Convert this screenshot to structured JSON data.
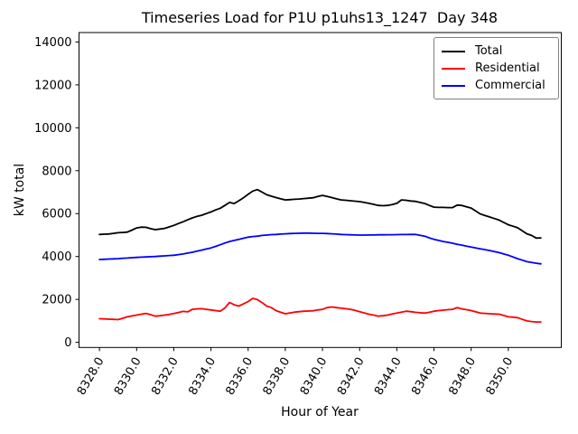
{
  "figure": {
    "background": "#ffffff"
  },
  "chart_data": {
    "type": "line",
    "title": "Timeseries Load for P1U p1uhs13_1247  Day 348",
    "xlabel": "Hour of Year",
    "ylabel": "kW total",
    "xlim": [
      8326.9,
      8352.85
    ],
    "ylim": [
      -240,
      14440
    ],
    "grid": false,
    "legend_position": "upper right",
    "ytick_values": [
      0,
      2000,
      4000,
      6000,
      8000,
      10000,
      12000,
      14000
    ],
    "ytick_labels": [
      "0",
      "2000",
      "4000",
      "6000",
      "8000",
      "10000",
      "12000",
      "14000"
    ],
    "xtick_values": [
      8328,
      8330,
      8332,
      8334,
      8336,
      8338,
      8340,
      8342,
      8344,
      8346,
      8348,
      8350
    ],
    "xtick_labels": [
      "8328.0",
      "8330.0",
      "8332.0",
      "8334.0",
      "8336.0",
      "8338.0",
      "8340.0",
      "8342.0",
      "8344.0",
      "8346.0",
      "8348.0",
      "8350.0"
    ],
    "x": [
      8328.0,
      8328.25,
      8328.5,
      8328.75,
      8329.0,
      8329.25,
      8329.5,
      8329.75,
      8330.0,
      8330.25,
      8330.5,
      8330.75,
      8331.0,
      8331.25,
      8331.5,
      8331.75,
      8332.0,
      8332.25,
      8332.5,
      8332.75,
      8333.0,
      8333.25,
      8333.5,
      8333.75,
      8334.0,
      8334.25,
      8334.5,
      8334.75,
      8335.0,
      8335.25,
      8335.5,
      8335.75,
      8336.0,
      8336.25,
      8336.5,
      8336.75,
      8337.0,
      8337.25,
      8337.5,
      8337.75,
      8338.0,
      8338.25,
      8338.5,
      8338.75,
      8339.0,
      8339.25,
      8339.5,
      8339.75,
      8340.0,
      8340.25,
      8340.5,
      8340.75,
      8341.0,
      8341.25,
      8341.5,
      8341.75,
      8342.0,
      8342.25,
      8342.5,
      8342.75,
      8343.0,
      8343.25,
      8343.5,
      8343.75,
      8344.0,
      8344.25,
      8344.5,
      8344.75,
      8345.0,
      8345.25,
      8345.5,
      8345.75,
      8346.0,
      8346.25,
      8346.5,
      8346.75,
      8347.0,
      8347.25,
      8347.5,
      8347.75,
      8348.0,
      8348.25,
      8348.5,
      8348.75,
      8349.0,
      8349.25,
      8349.5,
      8349.75,
      8350.0,
      8350.25,
      8350.5,
      8350.75,
      8351.0,
      8351.25,
      8351.5,
      8351.75
    ],
    "series": [
      {
        "name": "Total",
        "color": "#000000",
        "values": [
          5030,
          5040,
          5050,
          5080,
          5110,
          5120,
          5140,
          5230,
          5330,
          5370,
          5360,
          5300,
          5250,
          5280,
          5310,
          5380,
          5450,
          5540,
          5620,
          5710,
          5800,
          5870,
          5920,
          6000,
          6080,
          6170,
          6250,
          6380,
          6520,
          6470,
          6600,
          6740,
          6900,
          7050,
          7120,
          7000,
          6880,
          6810,
          6750,
          6690,
          6640,
          6650,
          6670,
          6680,
          6700,
          6720,
          6740,
          6800,
          6850,
          6800,
          6750,
          6690,
          6640,
          6620,
          6600,
          6580,
          6560,
          6520,
          6480,
          6430,
          6380,
          6370,
          6380,
          6420,
          6480,
          6640,
          6620,
          6590,
          6570,
          6520,
          6470,
          6380,
          6300,
          6290,
          6290,
          6280,
          6280,
          6400,
          6380,
          6320,
          6260,
          6120,
          5980,
          5910,
          5840,
          5770,
          5700,
          5590,
          5480,
          5410,
          5340,
          5200,
          5060,
          4980,
          4860,
          4870
        ]
      },
      {
        "name": "Residential",
        "color": "#ff0000",
        "values": [
          1100,
          1090,
          1080,
          1070,
          1060,
          1120,
          1190,
          1230,
          1270,
          1310,
          1350,
          1290,
          1220,
          1240,
          1270,
          1300,
          1340,
          1390,
          1440,
          1420,
          1540,
          1560,
          1570,
          1540,
          1510,
          1480,
          1450,
          1600,
          1860,
          1750,
          1690,
          1790,
          1900,
          2050,
          1990,
          1850,
          1690,
          1620,
          1480,
          1400,
          1330,
          1370,
          1410,
          1430,
          1450,
          1460,
          1470,
          1510,
          1540,
          1620,
          1650,
          1620,
          1590,
          1570,
          1540,
          1490,
          1430,
          1370,
          1310,
          1270,
          1220,
          1240,
          1270,
          1320,
          1360,
          1410,
          1450,
          1430,
          1400,
          1380,
          1360,
          1400,
          1450,
          1480,
          1500,
          1520,
          1540,
          1620,
          1560,
          1520,
          1480,
          1420,
          1360,
          1350,
          1330,
          1320,
          1310,
          1250,
          1190,
          1170,
          1150,
          1070,
          1000,
          970,
          950,
          950
        ]
      },
      {
        "name": "Commercial",
        "color": "#0000ff",
        "values": [
          3860,
          3870,
          3880,
          3890,
          3900,
          3920,
          3930,
          3945,
          3960,
          3970,
          3980,
          3990,
          4000,
          4015,
          4030,
          4045,
          4060,
          4090,
          4120,
          4160,
          4200,
          4250,
          4300,
          4350,
          4400,
          4470,
          4550,
          4630,
          4700,
          4750,
          4800,
          4850,
          4900,
          4930,
          4950,
          4980,
          5000,
          5020,
          5030,
          5045,
          5060,
          5070,
          5080,
          5085,
          5090,
          5090,
          5085,
          5080,
          5080,
          5070,
          5060,
          5045,
          5030,
          5020,
          5010,
          5005,
          5000,
          5000,
          5005,
          5005,
          5010,
          5010,
          5015,
          5015,
          5020,
          5025,
          5025,
          5030,
          5030,
          4990,
          4950,
          4870,
          4800,
          4750,
          4700,
          4660,
          4620,
          4570,
          4530,
          4480,
          4440,
          4400,
          4360,
          4320,
          4280,
          4230,
          4180,
          4120,
          4060,
          3980,
          3900,
          3830,
          3760,
          3720,
          3690,
          3660
        ]
      }
    ]
  }
}
